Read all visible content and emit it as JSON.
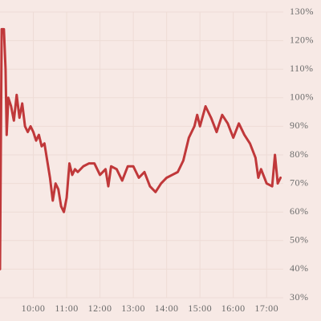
{
  "chart_data": {
    "type": "line",
    "color": "#c0383a",
    "grid": true,
    "x": [
      "09:00",
      "09:03",
      "09:07",
      "09:10",
      "09:12",
      "09:15",
      "09:20",
      "09:25",
      "09:30",
      "09:35",
      "09:40",
      "09:45",
      "09:50",
      "09:55",
      "10:00",
      "10:05",
      "10:10",
      "10:15",
      "10:20",
      "10:25",
      "10:30",
      "10:35",
      "10:40",
      "10:45",
      "10:50",
      "10:55",
      "11:00",
      "11:05",
      "11:10",
      "11:15",
      "11:20",
      "11:30",
      "11:40",
      "11:50",
      "12:00",
      "12:10",
      "12:15",
      "12:20",
      "12:30",
      "12:40",
      "12:50",
      "13:00",
      "13:10",
      "13:20",
      "13:30",
      "13:40",
      "13:50",
      "14:00",
      "14:10",
      "14:20",
      "14:30",
      "14:40",
      "14:50",
      "14:55",
      "15:00",
      "15:10",
      "15:20",
      "15:30",
      "15:40",
      "15:50",
      "16:00",
      "16:10",
      "16:20",
      "16:30",
      "16:40",
      "16:45",
      "16:50",
      "17:00",
      "17:10",
      "17:15",
      "17:20",
      "17:25"
    ],
    "values": [
      40,
      124,
      124,
      110,
      87,
      100,
      97,
      92,
      101,
      93,
      98,
      90,
      88,
      90,
      88,
      85,
      87,
      83,
      84,
      78,
      72,
      64,
      70,
      68,
      62,
      60,
      65,
      77,
      73,
      75,
      74,
      76,
      77,
      77,
      73,
      75,
      69,
      76,
      75,
      71,
      76,
      76,
      72,
      74,
      69,
      67,
      70,
      72,
      73,
      74,
      78,
      86,
      90,
      94,
      90,
      97,
      93,
      88,
      94,
      91,
      86,
      91,
      87,
      84,
      79,
      72,
      75,
      70,
      69,
      80,
      70,
      72
    ],
    "xlim": [
      "09:00",
      "17:30"
    ],
    "xticks": [
      "10:00",
      "11:00",
      "12:00",
      "13:00",
      "14:00",
      "15:00",
      "16:00",
      "17:00"
    ],
    "ylim": [
      30,
      130
    ],
    "yticks": [
      {
        "value": 30,
        "label": "30%"
      },
      {
        "value": 40,
        "label": "40%"
      },
      {
        "value": 50,
        "label": "50%"
      },
      {
        "value": 60,
        "label": "60%"
      },
      {
        "value": 70,
        "label": "70%"
      },
      {
        "value": 80,
        "label": "80%"
      },
      {
        "value": 90,
        "label": "90%"
      },
      {
        "value": 100,
        "label": "100%"
      },
      {
        "value": 110,
        "label": "110%"
      },
      {
        "value": 120,
        "label": "120%"
      },
      {
        "value": 130,
        "label": "130%"
      }
    ]
  }
}
